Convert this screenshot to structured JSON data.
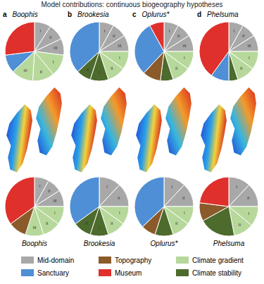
{
  "chart_data": {
    "type": "pie",
    "title": "Model contributions: continuous biogeography hypotheses",
    "series": [
      {
        "name": "Mid-domain",
        "color": "#a8a8a8"
      },
      {
        "name": "Sanctuary",
        "color": "#4f8fd6"
      },
      {
        "name": "Topography",
        "color": "#8b5a2b"
      },
      {
        "name": "Museum",
        "color": "#e0302c"
      },
      {
        "name": "Climate gradient",
        "color": "#b7d89b"
      },
      {
        "name": "Climate stability",
        "color": "#4d6b2c"
      }
    ],
    "panels": [
      {
        "letter": "a",
        "genus": "Boophis",
        "top": [
          {
            "category": "Mid-domain",
            "value": 9,
            "label": "I"
          },
          {
            "category": "Mid-domain",
            "value": 9,
            "label": "II"
          },
          {
            "category": "Mid-domain",
            "value": 9,
            "label": "III"
          },
          {
            "category": "Climate gradient",
            "value": 12,
            "label": "I"
          },
          {
            "category": "Climate gradient",
            "value": 12,
            "label": "II"
          },
          {
            "category": "Climate gradient",
            "value": 12,
            "label": "III"
          },
          {
            "category": "Sanctuary",
            "value": 10
          },
          {
            "category": "Museum",
            "value": 27
          }
        ],
        "bottom": [
          {
            "category": "Mid-domain",
            "value": 8,
            "label": "I"
          },
          {
            "category": "Mid-domain",
            "value": 8,
            "label": "II"
          },
          {
            "category": "Mid-domain",
            "value": 9,
            "label": "III"
          },
          {
            "category": "Climate gradient",
            "value": 10,
            "label": "I"
          },
          {
            "category": "Climate gradient",
            "value": 10,
            "label": "II"
          },
          {
            "category": "Climate gradient",
            "value": 10,
            "label": "III"
          },
          {
            "category": "Topography",
            "value": 10
          },
          {
            "category": "Museum",
            "value": 35
          }
        ]
      },
      {
        "letter": "b",
        "genus": "Brookesia",
        "top": [
          {
            "category": "Mid-domain",
            "value": 8,
            "label": "I"
          },
          {
            "category": "Mid-domain",
            "value": 8,
            "label": "II"
          },
          {
            "category": "Mid-domain",
            "value": 9,
            "label": "III"
          },
          {
            "category": "Climate gradient",
            "value": 10,
            "label": "I"
          },
          {
            "category": "Climate gradient",
            "value": 10,
            "label": "II"
          },
          {
            "category": "Climate stability",
            "value": 10,
            "label": "I"
          },
          {
            "category": "Climate stability",
            "value": 8,
            "label": "II"
          },
          {
            "category": "Sanctuary",
            "value": 37
          }
        ],
        "bottom": [
          {
            "category": "Mid-domain",
            "value": 12,
            "label": "I"
          },
          {
            "category": "Mid-domain",
            "value": 13,
            "label": "II"
          },
          {
            "category": "Climate gradient",
            "value": 10,
            "label": "I"
          },
          {
            "category": "Climate gradient",
            "value": 10,
            "label": "II"
          },
          {
            "category": "Climate stability",
            "value": 10,
            "label": "I"
          },
          {
            "category": "Climate stability",
            "value": 10,
            "label": "II"
          },
          {
            "category": "Sanctuary",
            "value": 35
          }
        ]
      },
      {
        "letter": "c",
        "genus": "Oplurus*",
        "top": [
          {
            "category": "Mid-domain",
            "value": 8,
            "label": "I"
          },
          {
            "category": "Mid-domain",
            "value": 8,
            "label": "II"
          },
          {
            "category": "Mid-domain",
            "value": 9,
            "label": "III"
          },
          {
            "category": "Climate gradient",
            "value": 10,
            "label": "I"
          },
          {
            "category": "Climate gradient",
            "value": 10,
            "label": "II"
          },
          {
            "category": "Climate stability",
            "value": 7
          },
          {
            "category": "Topography",
            "value": 10
          },
          {
            "category": "Sanctuary",
            "value": 30
          },
          {
            "category": "Museum",
            "value": 8
          }
        ],
        "bottom": [
          {
            "category": "Mid-domain",
            "value": 12,
            "label": "I"
          },
          {
            "category": "Mid-domain",
            "value": 13,
            "label": "II"
          },
          {
            "category": "Climate gradient",
            "value": 10,
            "label": "I"
          },
          {
            "category": "Climate gradient",
            "value": 10,
            "label": "II"
          },
          {
            "category": "Climate stability",
            "value": 10
          },
          {
            "category": "Topography",
            "value": 8
          },
          {
            "category": "Sanctuary",
            "value": 37
          }
        ]
      },
      {
        "letter": "d",
        "genus": "Phelsuma",
        "top": [
          {
            "category": "Mid-domain",
            "value": 8,
            "label": "I"
          },
          {
            "category": "Mid-domain",
            "value": 8,
            "label": "II"
          },
          {
            "category": "Mid-domain",
            "value": 9,
            "label": "III"
          },
          {
            "category": "Climate gradient",
            "value": 10,
            "label": "I"
          },
          {
            "category": "Climate gradient",
            "value": 10,
            "label": "II"
          },
          {
            "category": "Climate stability",
            "value": 5
          },
          {
            "category": "Sanctuary",
            "value": 10
          },
          {
            "category": "Museum",
            "value": 40
          }
        ],
        "bottom": [
          {
            "category": "Mid-domain",
            "value": 12,
            "label": "I"
          },
          {
            "category": "Mid-domain",
            "value": 13,
            "label": "II"
          },
          {
            "category": "Climate gradient",
            "value": 11,
            "label": "I"
          },
          {
            "category": "Climate gradient",
            "value": 11,
            "label": "II"
          },
          {
            "category": "Climate stability",
            "value": 20
          },
          {
            "category": "Topography",
            "value": 10
          },
          {
            "category": "Museum",
            "value": 23
          }
        ]
      }
    ]
  }
}
